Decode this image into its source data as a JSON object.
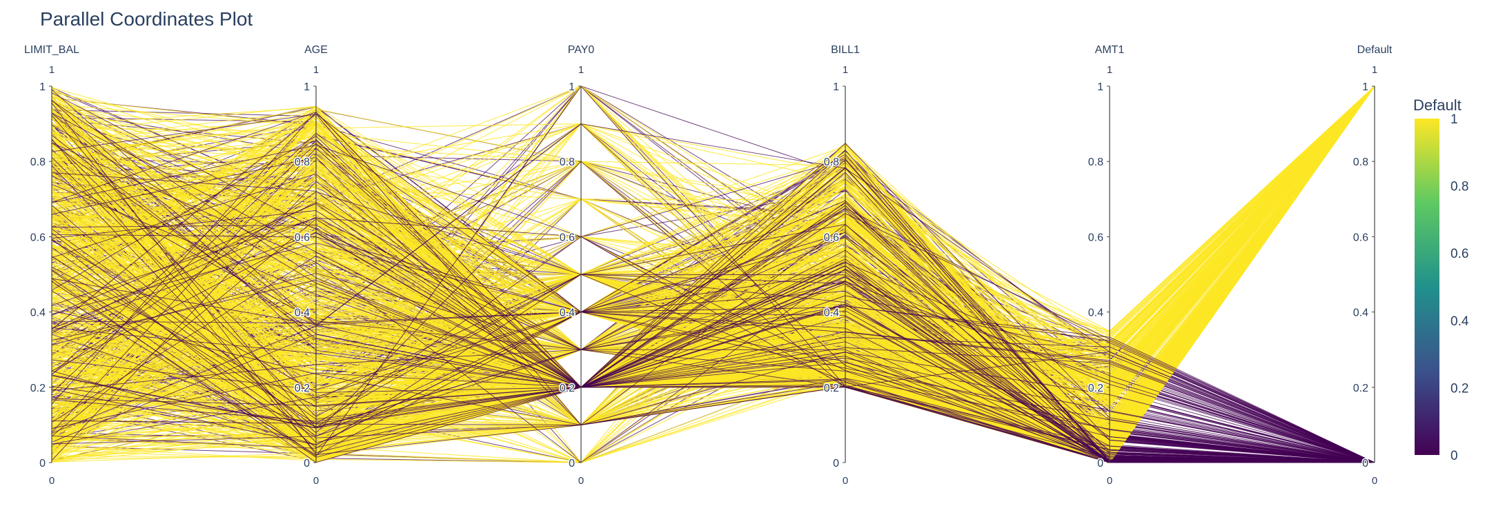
{
  "chart_data": {
    "type": "parallel_coordinates",
    "title": "Parallel Coordinates Plot",
    "color_variable": "Default",
    "colorscale": "Viridis",
    "colorscale_stops": [
      "#440154",
      "#3b528b",
      "#21918c",
      "#5ec962",
      "#fde725"
    ],
    "axes": [
      {
        "name": "LIMIT_BAL",
        "range": [
          0,
          1
        ],
        "range_min_label": "0",
        "range_max_label": "1",
        "ticks": [
          "0",
          "0.2",
          "0.4",
          "0.6",
          "0.8",
          "1"
        ]
      },
      {
        "name": "AGE",
        "range": [
          0,
          1
        ],
        "range_min_label": "0",
        "range_max_label": "1",
        "ticks": [
          "0",
          "0.2",
          "0.4",
          "0.6",
          "0.8",
          "1"
        ]
      },
      {
        "name": "PAY0",
        "range": [
          0,
          1
        ],
        "range_min_label": "0",
        "range_max_label": "1",
        "ticks": [
          "0",
          "0.2",
          "0.4",
          "0.6",
          "0.8",
          "1"
        ]
      },
      {
        "name": "BILL1",
        "range": [
          0,
          1
        ],
        "range_min_label": "0",
        "range_max_label": "1",
        "ticks": [
          "0",
          "0.2",
          "0.4",
          "0.6",
          "0.8",
          "1"
        ]
      },
      {
        "name": "AMT1",
        "range": [
          0,
          1
        ],
        "range_min_label": "0",
        "range_max_label": "1",
        "ticks": [
          "0",
          "0.2",
          "0.4",
          "0.6",
          "0.8",
          "1"
        ]
      },
      {
        "name": "Default",
        "range": [
          0,
          1
        ],
        "range_min_label": "0",
        "range_max_label": "1",
        "ticks": [
          "0",
          "0.2",
          "0.4",
          "0.6",
          "0.8",
          "1"
        ]
      }
    ],
    "pay0_levels": [
      0,
      0.1,
      0.2,
      0.3,
      0.4,
      0.5,
      0.6,
      0.7,
      0.8,
      0.9,
      1
    ],
    "default_values": [
      0,
      1
    ],
    "colorbar": {
      "title": "Default",
      "ticks": [
        "0",
        "0.2",
        "0.4",
        "0.6",
        "0.8",
        "1"
      ],
      "range": [
        0,
        1
      ]
    }
  }
}
